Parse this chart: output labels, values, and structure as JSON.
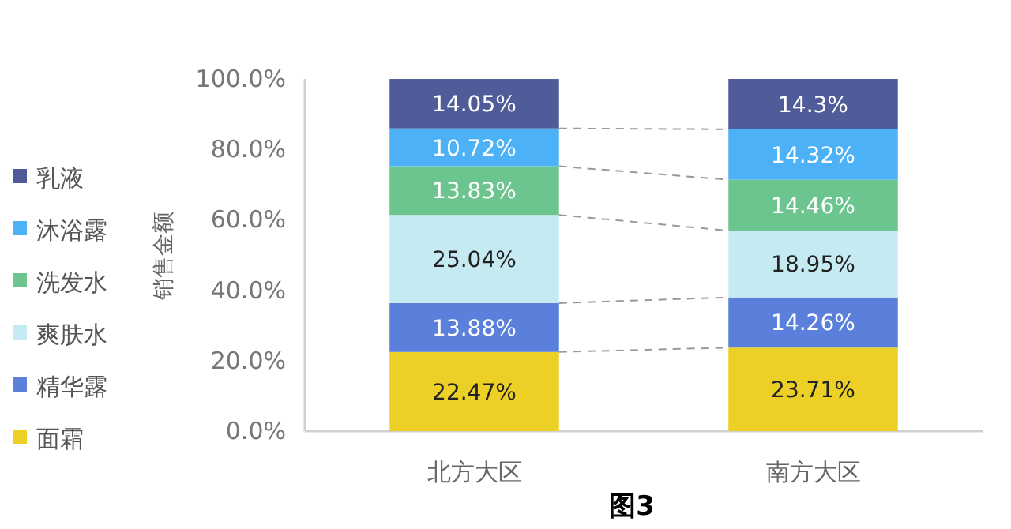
{
  "chart_data": {
    "type": "bar",
    "stacked": true,
    "ylabel": "销售金额",
    "legend": "left",
    "annotations": [
      "图3"
    ],
    "categories": [
      "北方大区",
      "南方大区"
    ],
    "ylim": [
      0,
      100
    ],
    "yticks": [
      {
        "value": 0,
        "label": "0.0%"
      },
      {
        "value": 20,
        "label": "20.0%"
      },
      {
        "value": 40,
        "label": "40.0%"
      },
      {
        "value": 60,
        "label": "60.0%"
      },
      {
        "value": 80,
        "label": "80.0%"
      },
      {
        "value": 100,
        "label": "100.0%"
      }
    ],
    "series": [
      {
        "name": "面霜",
        "color": "#ecd026",
        "values": [
          22.47,
          23.71
        ],
        "value_labels": [
          "22.47%",
          "23.71%"
        ]
      },
      {
        "name": "精华露",
        "color": "#5b80dc",
        "values": [
          13.88,
          14.26
        ],
        "value_labels": [
          "13.88%",
          "14.26%"
        ]
      },
      {
        "name": "爽肤水",
        "color": "#c6eaf2",
        "values": [
          25.04,
          18.95
        ],
        "value_labels": [
          "25.04%",
          "18.95%"
        ]
      },
      {
        "name": "洗发水",
        "color": "#6cc48e",
        "values": [
          13.83,
          14.46
        ],
        "value_labels": [
          "13.83%",
          "14.46%"
        ]
      },
      {
        "name": "沐浴露",
        "color": "#4cb1f7",
        "values": [
          10.72,
          14.32
        ],
        "value_labels": [
          "10.72%",
          "14.32%"
        ]
      },
      {
        "name": "乳液",
        "color": "#505c99",
        "values": [
          14.05,
          14.3
        ],
        "value_labels": [
          "14.05%",
          "14.3%"
        ]
      }
    ]
  }
}
